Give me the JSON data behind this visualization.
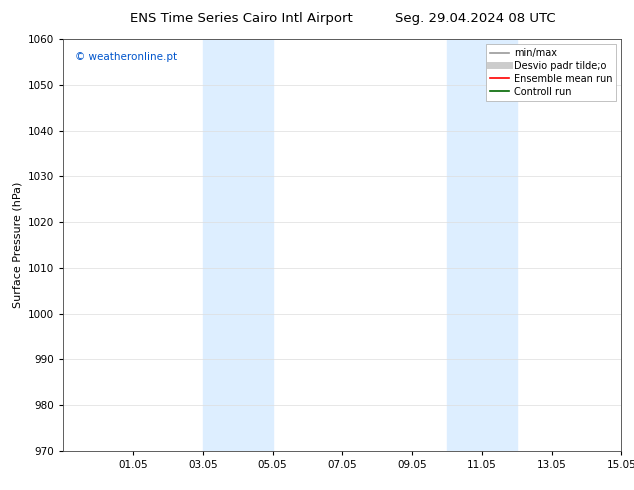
{
  "title_left": "ENS Time Series Cairo Intl Airport",
  "title_right": "Seg. 29.04.2024 08 UTC",
  "ylabel": "Surface Pressure (hPa)",
  "ylim": [
    970,
    1060
  ],
  "yticks": [
    970,
    980,
    990,
    1000,
    1010,
    1020,
    1030,
    1040,
    1050,
    1060
  ],
  "xtick_positions": [
    2,
    4,
    6,
    8,
    10,
    12,
    14,
    16
  ],
  "xtick_labels": [
    "01.05",
    "03.05",
    "05.05",
    "07.05",
    "09.05",
    "11.05",
    "13.05",
    "15.05"
  ],
  "xlim": [
    0,
    16
  ],
  "shaded_bands": [
    {
      "x_start": 4.0,
      "x_end": 6.0
    },
    {
      "x_start": 11.0,
      "x_end": 13.0
    }
  ],
  "shaded_color": "#ddeeff",
  "watermark_text": "© weatheronline.pt",
  "watermark_color": "#0055cc",
  "legend_entries": [
    {
      "label": "min/max",
      "color": "#999999",
      "lw": 1.2
    },
    {
      "label": "Desvio padr tilde;o",
      "color": "#cccccc",
      "lw": 5
    },
    {
      "label": "Ensemble mean run",
      "color": "#ff0000",
      "lw": 1.2
    },
    {
      "label": "Controll run",
      "color": "#006600",
      "lw": 1.2
    }
  ],
  "bg_color": "#ffffff",
  "grid_color": "#dddddd",
  "title_fontsize": 9.5,
  "tick_fontsize": 7.5,
  "ylabel_fontsize": 8,
  "watermark_fontsize": 7.5,
  "legend_fontsize": 7
}
